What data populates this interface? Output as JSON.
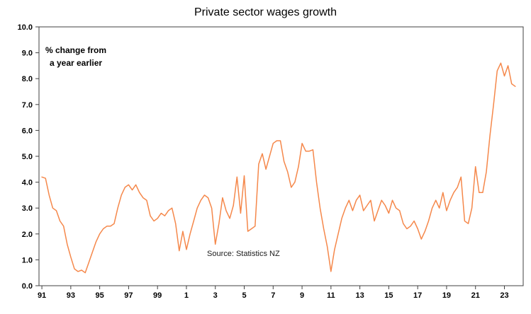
{
  "title": "Private sector wages growth",
  "annotation": {
    "line1": "% change from",
    "line2": "a year earlier"
  },
  "chart_data": {
    "type": "line",
    "title": "Private sector wages growth",
    "annotation": "% change from a year earlier",
    "source_note": "Source: Statistics NZ",
    "xlabel": "",
    "ylabel": "% change from a year earlier",
    "xlim": [
      1990.8,
      2024.3
    ],
    "ylim": [
      0,
      10
    ],
    "grid": false,
    "legend": "none",
    "line_color": "#F5884B",
    "axis_color": "#404040",
    "tick_color": "#000000",
    "y_ticks": [
      {
        "value": 0,
        "label": "0.0"
      },
      {
        "value": 1,
        "label": "1.0"
      },
      {
        "value": 2,
        "label": "2.0"
      },
      {
        "value": 3,
        "label": "3.0"
      },
      {
        "value": 4,
        "label": "4.0"
      },
      {
        "value": 5,
        "label": "5.0"
      },
      {
        "value": 6,
        "label": "6.0"
      },
      {
        "value": 7,
        "label": "7.0"
      },
      {
        "value": 8,
        "label": "8.0"
      },
      {
        "value": 9,
        "label": "9.0"
      },
      {
        "value": 10,
        "label": "10.0"
      }
    ],
    "x_ticks": [
      {
        "value": 1991,
        "label": "91"
      },
      {
        "value": 1993,
        "label": "93"
      },
      {
        "value": 1995,
        "label": "95"
      },
      {
        "value": 1997,
        "label": "97"
      },
      {
        "value": 1999,
        "label": "99"
      },
      {
        "value": 2001,
        "label": "1"
      },
      {
        "value": 2003,
        "label": "3"
      },
      {
        "value": 2005,
        "label": "5"
      },
      {
        "value": 2007,
        "label": "7"
      },
      {
        "value": 2009,
        "label": "9"
      },
      {
        "value": 2011,
        "label": "11"
      },
      {
        "value": 2013,
        "label": "13"
      },
      {
        "value": 2015,
        "label": "15"
      },
      {
        "value": 2017,
        "label": "17"
      },
      {
        "value": 2019,
        "label": "19"
      },
      {
        "value": 2021,
        "label": "21"
      },
      {
        "value": 2023,
        "label": "23"
      }
    ],
    "series": [
      {
        "name": "Private sector wages growth (% change from a year earlier, quarterly)",
        "x_start": 1991.0,
        "x_step": 0.25,
        "values": [
          4.2,
          4.15,
          3.5,
          3.0,
          2.9,
          2.5,
          2.3,
          1.6,
          1.1,
          0.65,
          0.55,
          0.6,
          0.5,
          0.9,
          1.3,
          1.7,
          2.0,
          2.2,
          2.3,
          2.3,
          2.4,
          3.0,
          3.5,
          3.8,
          3.9,
          3.7,
          3.9,
          3.6,
          3.4,
          3.3,
          2.7,
          2.5,
          2.6,
          2.8,
          2.7,
          2.9,
          3.0,
          2.4,
          1.35,
          2.1,
          1.4,
          2.0,
          2.5,
          3.0,
          3.3,
          3.5,
          3.4,
          3.0,
          1.6,
          2.4,
          3.4,
          2.9,
          2.6,
          3.1,
          4.2,
          2.8,
          4.25,
          2.1,
          2.2,
          2.3,
          4.7,
          5.1,
          4.5,
          5.0,
          5.5,
          5.6,
          5.6,
          4.8,
          4.4,
          3.8,
          4.0,
          4.6,
          5.5,
          5.2,
          5.2,
          5.25,
          4.0,
          3.0,
          2.2,
          1.5,
          0.55,
          1.4,
          2.0,
          2.6,
          3.0,
          3.3,
          2.9,
          3.3,
          3.5,
          2.9,
          3.1,
          3.3,
          2.5,
          2.9,
          3.3,
          3.1,
          2.8,
          3.3,
          3.0,
          2.9,
          2.4,
          2.2,
          2.3,
          2.5,
          2.2,
          1.8,
          2.1,
          2.5,
          3.0,
          3.3,
          3.0,
          3.6,
          2.9,
          3.3,
          3.6,
          3.8,
          4.2,
          2.5,
          2.4,
          3.0,
          4.6,
          3.6,
          3.6,
          4.4,
          5.8,
          7.0,
          8.3,
          8.6,
          8.1,
          8.5,
          7.8,
          7.7
        ]
      }
    ]
  }
}
